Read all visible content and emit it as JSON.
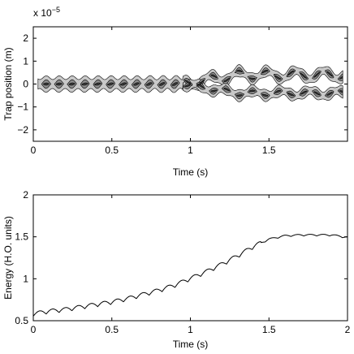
{
  "chart_data": [
    {
      "type": "heatmap",
      "plot_style": "filled-contour",
      "xlabel": "Time (s)",
      "ylabel": "Trap position (m)",
      "xlim": [
        0,
        2
      ],
      "ylim": [
        -2.5,
        2.5
      ],
      "y_multiplier": "x 10",
      "y_multiplier_exponent": "−5",
      "x_ticks": [
        0,
        0.5,
        1,
        1.5
      ],
      "x_tick_labels": [
        "0",
        "0.5",
        "1",
        "1.5"
      ],
      "y_ticks": [
        2,
        1,
        0,
        -1,
        -2
      ],
      "y_tick_labels": [
        "2",
        "1",
        "0",
        "−1",
        "−2"
      ],
      "contour_levels": [
        1,
        2,
        3
      ],
      "level_colors": [
        "#c8c8c8",
        "#8c8c8c",
        "#3c3c3c"
      ],
      "oscillation_period_s": 0.082,
      "single_lobe_until_s": 0.95,
      "split_branch_separation": 0.4,
      "grid": false
    },
    {
      "type": "line",
      "xlabel": "Time (s)",
      "ylabel": "Energy (H.O. units)",
      "xlim": [
        0,
        2
      ],
      "ylim": [
        0.5,
        2
      ],
      "x_ticks": [
        0,
        0.5,
        1,
        1.5,
        2
      ],
      "x_tick_labels": [
        "0",
        "0.5",
        "1",
        "1.5",
        "2"
      ],
      "y_ticks": [
        0.5,
        1,
        1.5,
        2
      ],
      "y_tick_labels": [
        "0.5",
        "1",
        "1.5",
        "2"
      ],
      "grid": false,
      "series": [
        {
          "color": "#000000",
          "x": [
            0,
            0.1,
            0.2,
            0.3,
            0.4,
            0.5,
            0.6,
            0.7,
            0.8,
            0.9,
            1.0,
            1.1,
            1.2,
            1.3,
            1.4,
            1.5,
            1.6,
            1.7,
            1.8,
            1.9,
            2.0
          ],
          "values": [
            0.58,
            0.61,
            0.63,
            0.66,
            0.69,
            0.72,
            0.76,
            0.81,
            0.86,
            0.92,
            1.0,
            1.08,
            1.17,
            1.27,
            1.38,
            1.47,
            1.51,
            1.52,
            1.52,
            1.52,
            1.49
          ],
          "ripple_amplitude": 0.025,
          "ripple_period_s": 0.082
        }
      ]
    }
  ]
}
